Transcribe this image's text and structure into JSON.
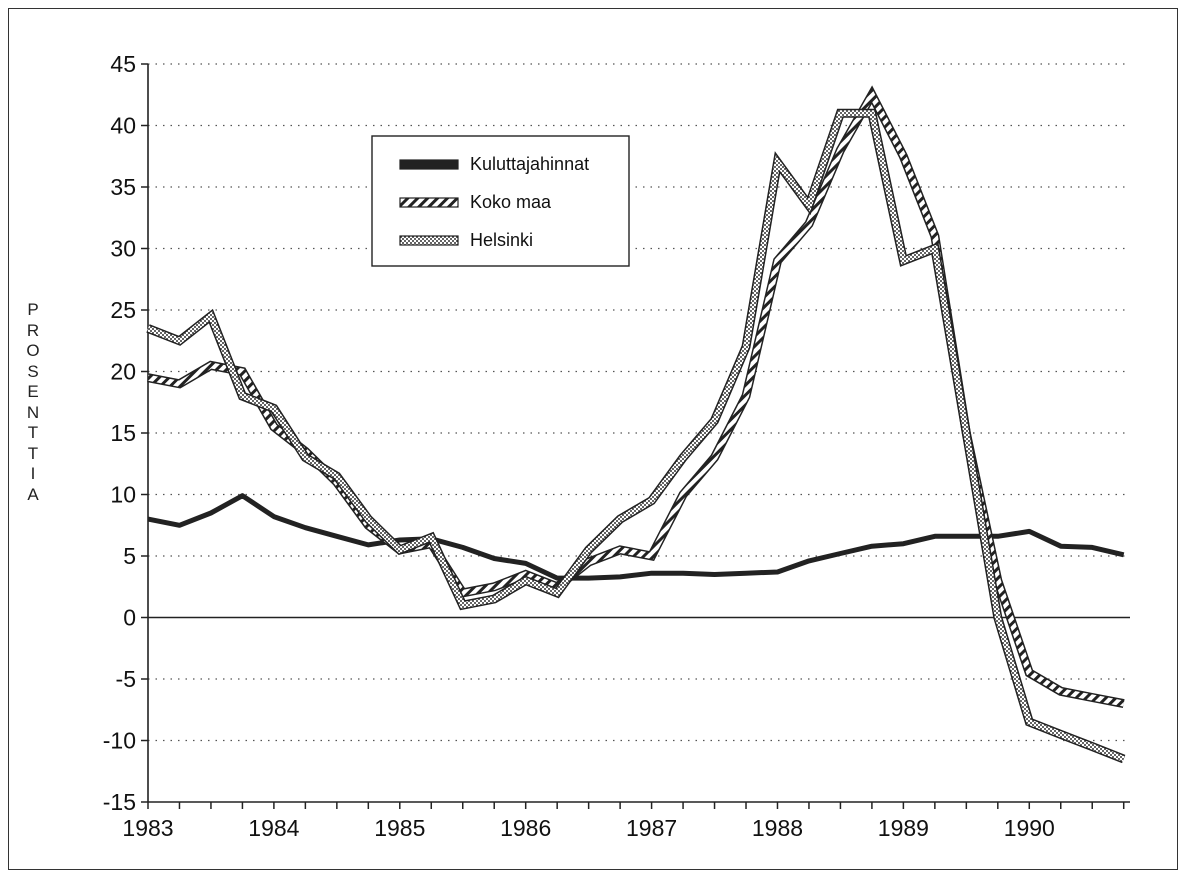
{
  "chart_data": {
    "type": "line",
    "title": "",
    "xlabel": "",
    "ylabel": "PROSENTTIA",
    "ylim": [
      -15,
      45
    ],
    "yticks": [
      -15,
      -10,
      -5,
      0,
      5,
      10,
      15,
      20,
      25,
      30,
      35,
      40,
      45
    ],
    "xlim": [
      1983.0,
      1990.8
    ],
    "xticks": [
      1983,
      1984,
      1985,
      1986,
      1987,
      1988,
      1989,
      1990
    ],
    "grid": "horizontal dotted",
    "legend_position": "top-left",
    "series": [
      {
        "name": "Kuluttajahinnat",
        "style": "solid",
        "color": "#222222",
        "x": [
          1983.0,
          1983.25,
          1983.5,
          1983.75,
          1984.0,
          1984.25,
          1984.5,
          1984.75,
          1985.0,
          1985.25,
          1985.5,
          1985.75,
          1986.0,
          1986.25,
          1986.5,
          1986.75,
          1987.0,
          1987.25,
          1987.5,
          1987.75,
          1988.0,
          1988.25,
          1988.5,
          1988.75,
          1989.0,
          1989.25,
          1989.5,
          1989.75,
          1990.0,
          1990.25,
          1990.5,
          1990.75
        ],
        "values": [
          8.0,
          7.5,
          8.5,
          9.9,
          8.2,
          7.3,
          6.6,
          5.9,
          6.3,
          6.4,
          5.7,
          4.8,
          4.4,
          3.2,
          3.2,
          3.3,
          3.6,
          3.6,
          3.5,
          3.6,
          3.7,
          4.6,
          5.2,
          5.8,
          6.0,
          6.6,
          6.6,
          6.6,
          7.0,
          5.8,
          5.7,
          5.1
        ]
      },
      {
        "name": "Koko maa",
        "style": "hatched",
        "color": "#222222",
        "x": [
          1983.0,
          1983.25,
          1983.5,
          1983.75,
          1984.0,
          1984.25,
          1984.5,
          1984.75,
          1985.0,
          1985.25,
          1985.5,
          1985.75,
          1986.0,
          1986.25,
          1986.5,
          1986.75,
          1987.0,
          1987.25,
          1987.5,
          1987.75,
          1988.0,
          1988.25,
          1988.5,
          1988.75,
          1989.0,
          1989.25,
          1989.5,
          1989.75,
          1990.0,
          1990.25,
          1990.5,
          1990.75
        ],
        "values": [
          19.5,
          19.0,
          20.5,
          20.0,
          15.5,
          13.5,
          11.0,
          7.5,
          5.5,
          6.0,
          2.0,
          2.5,
          3.5,
          2.5,
          4.5,
          5.5,
          5.0,
          10.0,
          13.0,
          18.0,
          29.0,
          32.0,
          38.0,
          42.5,
          37.5,
          31.0,
          15.0,
          3.0,
          -4.5,
          -6.0,
          -6.5,
          -7.0
        ]
      },
      {
        "name": "Helsinki",
        "style": "dotted-fill",
        "color": "#222222",
        "x": [
          1983.0,
          1983.25,
          1983.5,
          1983.75,
          1984.0,
          1984.25,
          1984.5,
          1984.75,
          1985.0,
          1985.25,
          1985.5,
          1985.75,
          1986.0,
          1986.25,
          1986.5,
          1986.75,
          1987.0,
          1987.25,
          1987.5,
          1987.75,
          1988.0,
          1988.25,
          1988.5,
          1988.75,
          1989.0,
          1989.25,
          1989.5,
          1989.75,
          1990.0,
          1990.25,
          1990.5,
          1990.75
        ],
        "values": [
          23.5,
          22.5,
          24.5,
          18.0,
          17.0,
          13.0,
          11.5,
          8.0,
          5.5,
          6.5,
          1.0,
          1.5,
          3.0,
          2.0,
          5.5,
          8.0,
          9.5,
          13.0,
          16.0,
          22.0,
          37.0,
          33.5,
          41.0,
          41.0,
          29.0,
          30.0,
          15.0,
          0.0,
          -8.5,
          -9.5,
          -10.5,
          -11.5
        ]
      }
    ]
  }
}
